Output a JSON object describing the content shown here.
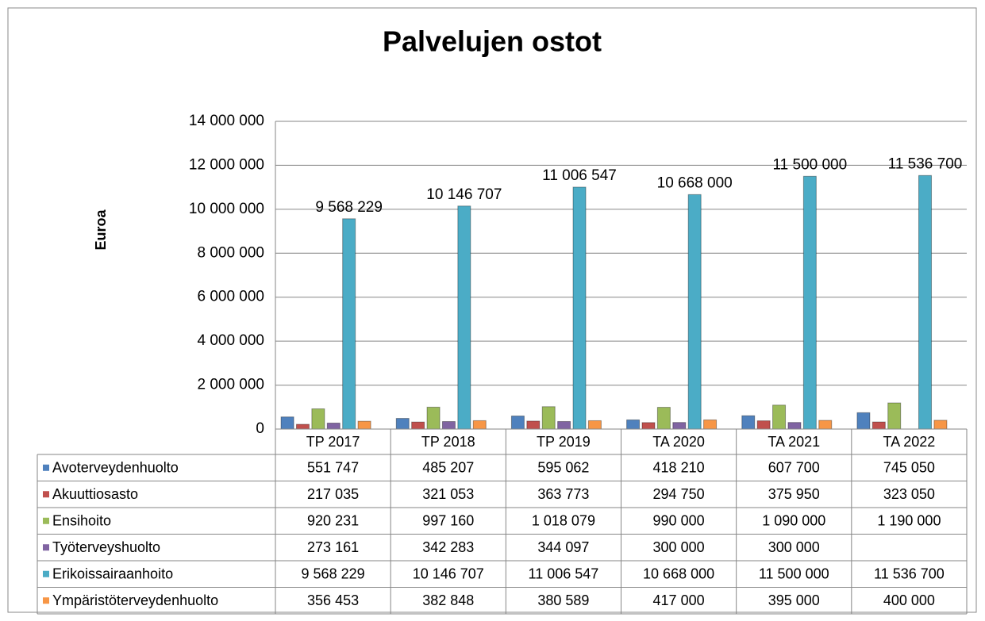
{
  "chart_data": {
    "type": "bar",
    "title": "Palvelujen ostot",
    "y_label": "Euroa",
    "categories": [
      "TP 2017",
      "TP 2018",
      "TP 2019",
      "TA 2020",
      "TA 2021",
      "TA 2022"
    ],
    "ylim": [
      0,
      14000000
    ],
    "yticks": [
      0,
      {
        "value": 2000000,
        "label": "2 000 000"
      },
      {
        "value": 4000000,
        "label": "4 000 000"
      },
      {
        "value": 6000000,
        "label": "6 000 000"
      },
      {
        "value": 8000000,
        "label": "8 000 000"
      },
      {
        "value": 10000000,
        "label": "10 000 000"
      },
      {
        "value": 12000000,
        "label": "12 000 000"
      },
      {
        "value": 14000000,
        "label": "14 000 000"
      }
    ],
    "grid": true,
    "series": [
      {
        "name": "Avoterveydenhuolto",
        "color": "#4f81bd",
        "values": [
          551747,
          485207,
          595062,
          418210,
          607700,
          745050
        ],
        "value_labels": [
          "551 747",
          "485 207",
          "595 062",
          "418 210",
          "607 700",
          "745 050"
        ]
      },
      {
        "name": "Akuuttiosasto",
        "color": "#c0504d",
        "values": [
          217035,
          321053,
          363773,
          294750,
          375950,
          323050
        ],
        "value_labels": [
          "217 035",
          "321 053",
          "363 773",
          "294 750",
          "375 950",
          "323 050"
        ]
      },
      {
        "name": "Ensihoito",
        "color": "#9bbb59",
        "values": [
          920231,
          997160,
          1018079,
          990000,
          1090000,
          1190000
        ],
        "value_labels": [
          "920 231",
          "997 160",
          "1 018 079",
          "990 000",
          "1 090 000",
          "1 190 000"
        ]
      },
      {
        "name": "Työterveyshuolto",
        "color": "#8064a2",
        "values": [
          273161,
          342283,
          344097,
          300000,
          300000,
          null
        ],
        "value_labels": [
          "273 161",
          "342 283",
          "344 097",
          "300 000",
          "300 000",
          null
        ]
      },
      {
        "name": "Erikoissairaanhoito",
        "color": "#4bacc6",
        "values": [
          9568229,
          10146707,
          11006547,
          10668000,
          11500000,
          11536700
        ],
        "value_labels": [
          "9 568 229",
          "10 146 707",
          "11 006 547",
          "10 668 000",
          "11 500 000",
          "11 536 700"
        ],
        "bar_labels": true
      },
      {
        "name": "Ympäristöterveydenhuolto",
        "color": "#f79646",
        "values": [
          356453,
          382848,
          380589,
          417000,
          395000,
          400000
        ],
        "value_labels": [
          "356 453",
          "382 848",
          "380 589",
          "417 000",
          "395 000",
          "400 000"
        ]
      }
    ]
  }
}
